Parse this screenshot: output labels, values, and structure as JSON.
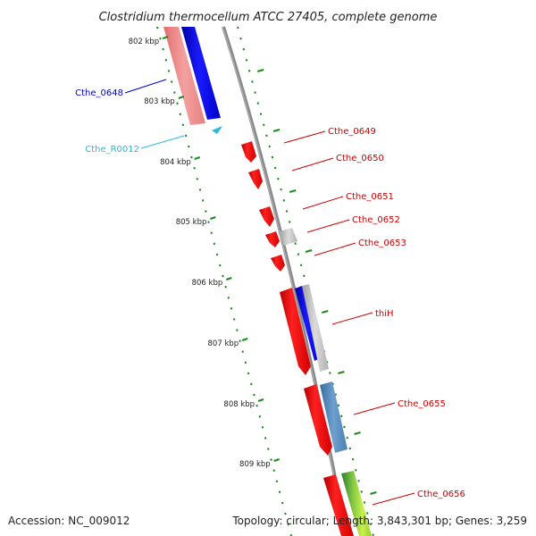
{
  "title": "Clostridium thermocellum ATCC 27405, complete genome",
  "footer": {
    "accession": "Accession: NC_009012",
    "topology": "Topology: circular; Length: 3,843,301 bp; Genes: 3,259"
  },
  "kbp_labels": [
    "802 kbp",
    "803 kbp",
    "804 kbp",
    "805 kbp",
    "806 kbp",
    "807 kbp",
    "808 kbp",
    "809 kbp"
  ],
  "gene_labels": [
    {
      "name": "Cthe_0648",
      "color": "#0000cc"
    },
    {
      "name": "Cthe_R0012",
      "color": "#2ab8e0"
    },
    {
      "name": "Cthe_0649",
      "color": "#cc0000"
    },
    {
      "name": "Cthe_0650",
      "color": "#cc0000"
    },
    {
      "name": "Cthe_0651",
      "color": "#cc0000"
    },
    {
      "name": "Cthe_0652",
      "color": "#cc0000"
    },
    {
      "name": "Cthe_0653",
      "color": "#cc0000"
    },
    {
      "name": "thiH",
      "color": "#cc0000"
    },
    {
      "name": "Cthe_0655",
      "color": "#cc0000"
    },
    {
      "name": "Cthe_0656",
      "color": "#cc0000"
    }
  ],
  "colors": {
    "backbone": "#8a8a8a",
    "gc_ticks": "#1f8a1f",
    "cds_red": "#ff0000",
    "cds_blue": "#0000ee",
    "cds_pink": "#f08a8a",
    "cds_gray": "#bdbdbd",
    "cds_steel": "#4f86b8",
    "cds_green": "#9acd32",
    "rna_cyan": "#2ab8e0"
  }
}
